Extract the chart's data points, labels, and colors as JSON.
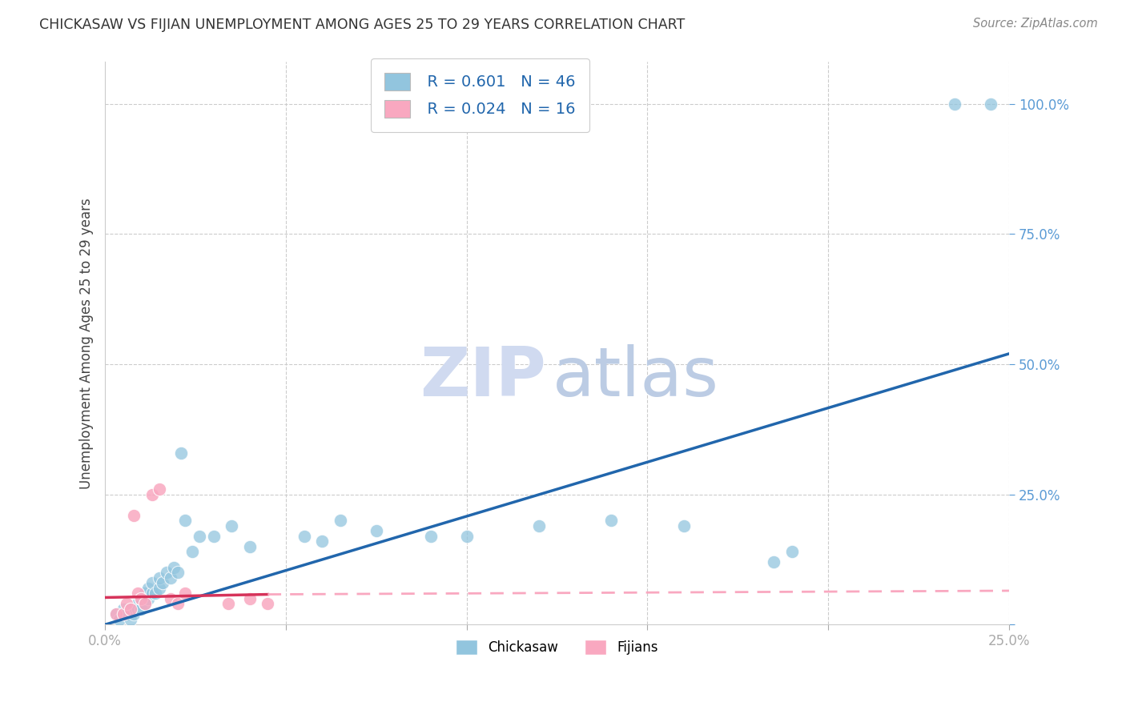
{
  "title": "CHICKASAW VS FIJIAN UNEMPLOYMENT AMONG AGES 25 TO 29 YEARS CORRELATION CHART",
  "source": "Source: ZipAtlas.com",
  "ylabel": "Unemployment Among Ages 25 to 29 years",
  "x_min": 0.0,
  "x_max": 0.25,
  "y_min": 0.0,
  "y_max": 1.08,
  "legend_r1": "R = 0.601",
  "legend_n1": "N = 46",
  "legend_r2": "R = 0.024",
  "legend_n2": "N = 16",
  "chickasaw_color": "#92c5de",
  "fijian_color": "#f9a8c0",
  "trendline_chickasaw_color": "#2166ac",
  "trendline_fijian_solid_color": "#d6335a",
  "trendline_fijian_dashed_color": "#f9a8c0",
  "grid_color": "#cccccc",
  "chickasaw_x": [
    0.003,
    0.004,
    0.005,
    0.005,
    0.006,
    0.007,
    0.007,
    0.008,
    0.009,
    0.009,
    0.01,
    0.01,
    0.011,
    0.011,
    0.012,
    0.012,
    0.013,
    0.013,
    0.014,
    0.015,
    0.015,
    0.016,
    0.017,
    0.018,
    0.019,
    0.02,
    0.021,
    0.022,
    0.024,
    0.026,
    0.03,
    0.035,
    0.04,
    0.055,
    0.06,
    0.065,
    0.075,
    0.09,
    0.1,
    0.12,
    0.14,
    0.16,
    0.185,
    0.19,
    0.235,
    0.245
  ],
  "chickasaw_y": [
    0.02,
    0.01,
    0.03,
    0.02,
    0.02,
    0.03,
    0.01,
    0.02,
    0.04,
    0.03,
    0.03,
    0.05,
    0.04,
    0.06,
    0.05,
    0.07,
    0.06,
    0.08,
    0.06,
    0.07,
    0.09,
    0.08,
    0.1,
    0.09,
    0.11,
    0.1,
    0.33,
    0.2,
    0.14,
    0.17,
    0.17,
    0.19,
    0.15,
    0.17,
    0.16,
    0.2,
    0.18,
    0.17,
    0.17,
    0.19,
    0.2,
    0.19,
    0.12,
    0.14,
    1.0,
    1.0
  ],
  "fijian_x": [
    0.003,
    0.005,
    0.006,
    0.007,
    0.008,
    0.009,
    0.01,
    0.011,
    0.013,
    0.015,
    0.018,
    0.02,
    0.022,
    0.034,
    0.04,
    0.045
  ],
  "fijian_y": [
    0.02,
    0.02,
    0.04,
    0.03,
    0.21,
    0.06,
    0.05,
    0.04,
    0.25,
    0.26,
    0.05,
    0.04,
    0.06,
    0.04,
    0.05,
    0.04
  ],
  "trendline_chickasaw_x0": 0.0,
  "trendline_chickasaw_x1": 0.25,
  "trendline_chickasaw_y0": 0.0,
  "trendline_chickasaw_y1": 0.52,
  "trendline_fijian_x0": 0.0,
  "trendline_fijian_x_solid_end": 0.045,
  "trendline_fijian_x1": 0.25,
  "trendline_fijian_y0": 0.052,
  "trendline_fijian_y_solid_end": 0.058,
  "trendline_fijian_y1": 0.065
}
